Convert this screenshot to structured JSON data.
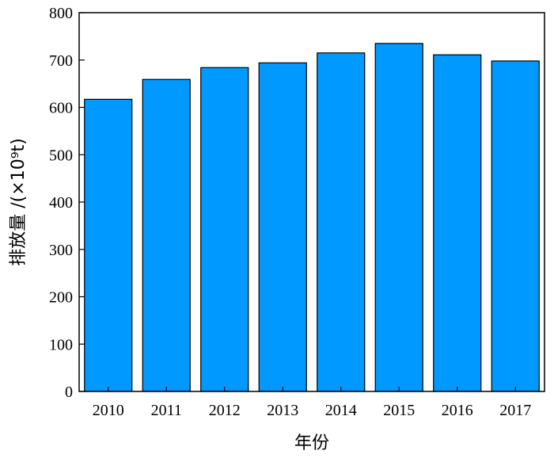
{
  "chart_data": {
    "type": "bar",
    "title": "",
    "xlabel": "年份",
    "ylabel": "排放量 /(×10⁹t)",
    "categories": [
      "2010",
      "2011",
      "2012",
      "2013",
      "2014",
      "2015",
      "2016",
      "2017"
    ],
    "values": [
      617,
      659,
      684,
      694,
      715,
      735,
      711,
      698
    ],
    "ylim": [
      0,
      800
    ],
    "yticks": [
      0,
      100,
      200,
      300,
      400,
      500,
      600,
      700,
      800
    ],
    "grid": false,
    "legend": "none",
    "bar_color": "#0099ff",
    "bar_edge_color": "#000000"
  }
}
